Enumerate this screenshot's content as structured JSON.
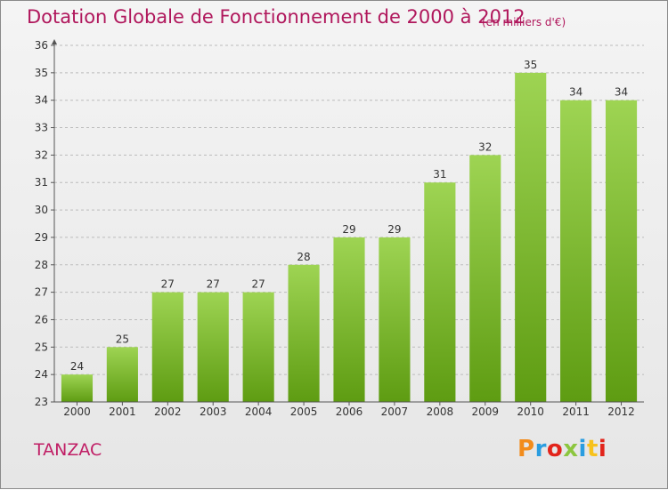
{
  "header": {
    "title": "Dotation Globale de Fonctionnement de 2000 à 2012",
    "unit_note": "(en milliers d'€)"
  },
  "footer": {
    "commune": "TANZAC",
    "brand": "Proxiti",
    "brand_colors": [
      "#f28c1c",
      "#2a9de0",
      "#e2241b",
      "#8cc63f",
      "#2a9de0",
      "#f7c21b",
      "#e2241b"
    ]
  },
  "colors": {
    "title": "#b0175c",
    "bar_light": "#9ed453",
    "bar_dark": "#5e9c12",
    "axis": "#555555",
    "grid": "#bbbbbb"
  },
  "chart_data": {
    "type": "bar",
    "title": "Dotation Globale de Fonctionnement de 2000 à 2012",
    "subtitle": "(en milliers d'€)",
    "xlabel": "",
    "ylabel": "",
    "categories": [
      "2000",
      "2001",
      "2002",
      "2003",
      "2004",
      "2005",
      "2006",
      "2007",
      "2008",
      "2009",
      "2010",
      "2011",
      "2012"
    ],
    "values": [
      24,
      25,
      27,
      27,
      27,
      28,
      29,
      29,
      31,
      32,
      35,
      34,
      34
    ],
    "ylim": [
      23,
      36
    ],
    "yticks": [
      23,
      24,
      25,
      26,
      27,
      28,
      29,
      30,
      31,
      32,
      33,
      34,
      35,
      36
    ],
    "grid": true,
    "data_labels": true
  }
}
